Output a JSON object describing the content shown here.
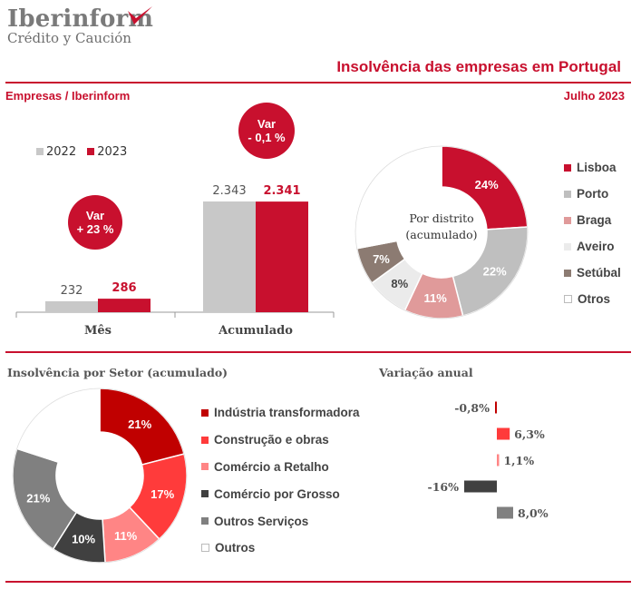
{
  "brand": {
    "name": "Iberinform",
    "tagline": "Crédito y Caución",
    "accent": "#c8102e",
    "gray": "#c8c8c8"
  },
  "header": {
    "title": "Insolvência das empresas em Portugal",
    "left_label": "Empresas / Iberinform",
    "date": "Julho 2023"
  },
  "chart_data": [
    {
      "type": "bar",
      "categories": [
        "Mês",
        "Acumulado"
      ],
      "series": [
        {
          "name": "2022",
          "values": [
            232,
            2343
          ],
          "labels": [
            "232",
            "2.343"
          ],
          "color": "#c8c8c8"
        },
        {
          "name": "2023",
          "values": [
            286,
            2341
          ],
          "labels": [
            "286",
            "2.341"
          ],
          "color": "#c8102e"
        }
      ],
      "annotations": [
        {
          "title": "Var",
          "value": "+ 23 %"
        },
        {
          "title": "Var",
          "value": "- 0,1 %"
        }
      ],
      "legend": "top-left"
    },
    {
      "type": "pie",
      "center_label": [
        "Por distrito",
        "(acumulado)"
      ],
      "slices": [
        {
          "name": "Lisboa",
          "value": 24,
          "label": "24%",
          "color": "#c8102e"
        },
        {
          "name": "Porto",
          "value": 22,
          "label": "22%",
          "color": "#bfbfbf"
        },
        {
          "name": "Braga",
          "value": 11,
          "label": "11%",
          "color": "#e09a9a"
        },
        {
          "name": "Aveiro",
          "value": 8,
          "label": "8%",
          "color": "#ebebeb"
        },
        {
          "name": "Setúbal",
          "value": 7,
          "label": "7%",
          "color": "#8c7b72"
        },
        {
          "name": "Otros",
          "value": 28,
          "label": "",
          "color": "#ffffff"
        }
      ],
      "legend": "right"
    },
    {
      "type": "pie",
      "title": "Insolvência por Setor (acumulado)",
      "slices": [
        {
          "name": "Indústria transformadora",
          "value": 21,
          "label": "21%",
          "color": "#c00000"
        },
        {
          "name": "Construção e obras",
          "value": 17,
          "label": "17%",
          "color": "#ff3b3b"
        },
        {
          "name": "Comércio a Retalho",
          "value": 11,
          "label": "11%",
          "color": "#ff8585"
        },
        {
          "name": "Comércio por Grosso",
          "value": 10,
          "label": "10%",
          "color": "#404040"
        },
        {
          "name": "Outros Serviços",
          "value": 21,
          "label": "21%",
          "color": "#808080"
        },
        {
          "name": "Outros",
          "value": 20,
          "label": "",
          "color": "#ffffff"
        }
      ],
      "legend": "right"
    },
    {
      "type": "bar",
      "title": "Variação anual",
      "orientation": "horizontal",
      "categories": [
        "Indústria transformadora",
        "Construção e obras",
        "Comércio a Retalho",
        "Comércio por Grosso",
        "Outros Serviços"
      ],
      "values": [
        -0.8,
        6.3,
        1.1,
        -16,
        8.0
      ],
      "labels": [
        "-0,8%",
        "6,3%",
        "1,1%",
        "-16%",
        "8,0%"
      ],
      "colors": [
        "#c00000",
        "#ff3b3b",
        "#ff8585",
        "#404040",
        "#808080"
      ]
    }
  ]
}
